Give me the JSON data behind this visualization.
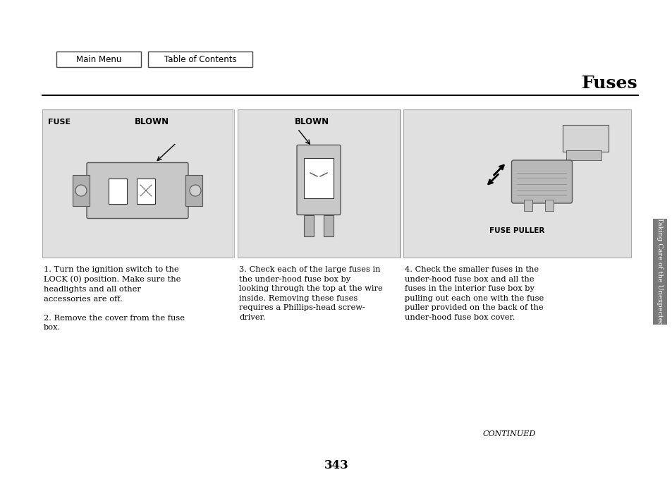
{
  "page_bg": "#ffffff",
  "title": "Fuses",
  "page_number": "343",
  "sidebar_text": "Taking Care of the Unexpected",
  "continued_text": "CONTINUED",
  "nav_buttons": [
    "Main Menu",
    "Table of Contents"
  ],
  "panel_bg": "#e0e0e0",
  "panel_border": "#aaaaaa",
  "text_color": "#000000",
  "sidebar_bg": "#7a7a7a",
  "text_block1": "1. Turn the ignition switch to the\nLOCK (0) position. Make sure the\nheadlights and all other\naccessories are off.\n\n2. Remove the cover from the fuse\nbox.",
  "text_block2": "3. Check each of the large fuses in\nthe under-hood fuse box by\nlooking through the top at the wire\ninside. Removing these fuses\nrequires a Phillips-head screw-\ndriver.",
  "text_block3": "4. Check the smaller fuses in the\nunder-hood fuse box and all the\nfuses in the interior fuse box by\npulling out each one with the fuse\npuller provided on the back of the\nunder-hood fuse box cover."
}
